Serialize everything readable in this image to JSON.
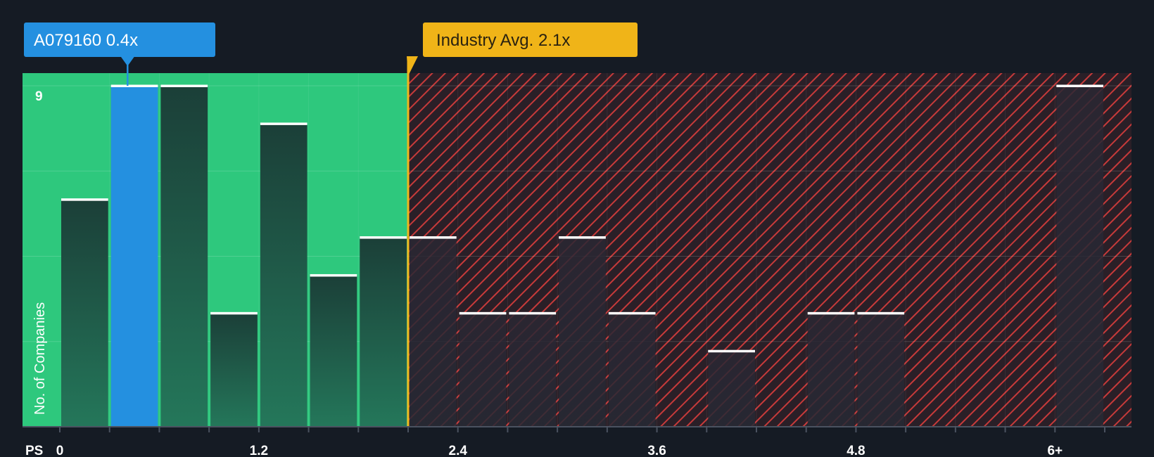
{
  "chart_data": {
    "type": "bar",
    "x_axis_label": "PS",
    "y_axis_label": "No. of Companies",
    "x_ticks": [
      "0",
      "1.2",
      "2.4",
      "3.6",
      "4.8",
      "6+"
    ],
    "y_ticks": [
      "9"
    ],
    "bins": [
      {
        "x_start": 0.0,
        "x_end": 0.3,
        "count": 6
      },
      {
        "x_start": 0.3,
        "x_end": 0.6,
        "count": 9,
        "highlight": true
      },
      {
        "x_start": 0.6,
        "x_end": 0.9,
        "count": 9
      },
      {
        "x_start": 0.9,
        "x_end": 1.2,
        "count": 3
      },
      {
        "x_start": 1.2,
        "x_end": 1.5,
        "count": 8
      },
      {
        "x_start": 1.5,
        "x_end": 1.8,
        "count": 4
      },
      {
        "x_start": 1.8,
        "x_end": 2.1,
        "count": 5
      },
      {
        "x_start": 2.1,
        "x_end": 2.4,
        "count": 5
      },
      {
        "x_start": 2.4,
        "x_end": 2.7,
        "count": 3
      },
      {
        "x_start": 2.7,
        "x_end": 3.0,
        "count": 3
      },
      {
        "x_start": 3.0,
        "x_end": 3.3,
        "count": 5
      },
      {
        "x_start": 3.3,
        "x_end": 3.6,
        "count": 3
      },
      {
        "x_start": 3.6,
        "x_end": 3.9,
        "count": 0
      },
      {
        "x_start": 3.9,
        "x_end": 4.2,
        "count": 2
      },
      {
        "x_start": 4.2,
        "x_end": 4.5,
        "count": 0
      },
      {
        "x_start": 4.5,
        "x_end": 4.8,
        "count": 3
      },
      {
        "x_start": 4.8,
        "x_end": 5.1,
        "count": 3
      },
      {
        "x_start": 5.1,
        "x_end": 5.4,
        "count": 0
      },
      {
        "x_start": 5.4,
        "x_end": 5.7,
        "count": 0
      },
      {
        "x_start": 5.7,
        "x_end": 6.0,
        "count": 0
      },
      {
        "x_start": 6.0,
        "x_end": 6.3,
        "count": 9
      }
    ],
    "company": {
      "label": "A079160 0.4x",
      "value": 0.4
    },
    "industry_avg": {
      "label": "Industry Avg. 2.1x",
      "value": 2.1
    },
    "x_range": [
      0,
      6.3
    ],
    "y_range": [
      0,
      9
    ],
    "colors": {
      "background": "#151b24",
      "undervalued_zone": "#2ec87d",
      "overvalued_hatch": "#d63c3c",
      "company_bar": "#2490e0",
      "industry_marker": "#f0b418",
      "bar_fill": "#1b4a3a",
      "bar_fill_dark": "#232634",
      "bar_cap": "#ffffff"
    }
  }
}
